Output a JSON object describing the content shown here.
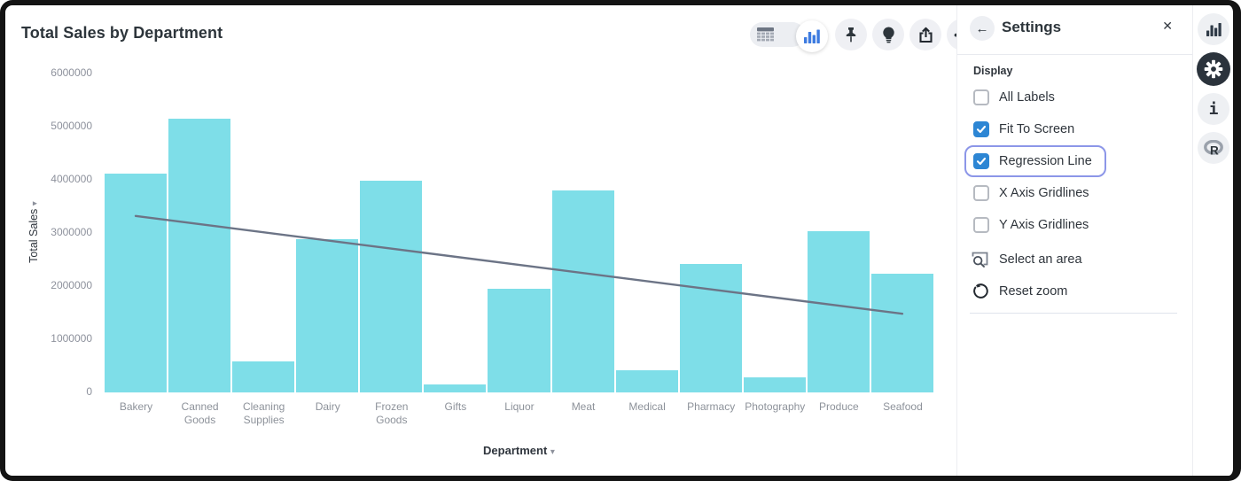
{
  "header": {
    "title": "Total Sales by Department"
  },
  "toolbar": {
    "icons": [
      "table-view-icon",
      "bar-chart-view-icon",
      "pin-icon",
      "lightbulb-icon",
      "share-icon",
      "ellipsis-icon"
    ],
    "ellipsis_glyph": "•••"
  },
  "chart_data": {
    "type": "bar",
    "title": "Total Sales by Department",
    "xlabel": "Department",
    "ylabel": "Total Sales",
    "categories": [
      "Bakery",
      "Canned Goods",
      "Cleaning Supplies",
      "Dairy",
      "Frozen Goods",
      "Gifts",
      "Liquor",
      "Meat",
      "Medical",
      "Pharmacy",
      "Photography",
      "Produce",
      "Seafood"
    ],
    "values": [
      4120000,
      5150000,
      580000,
      2890000,
      3980000,
      150000,
      1950000,
      3800000,
      420000,
      2420000,
      280000,
      3040000,
      2230000
    ],
    "ylim": [
      0,
      6000000
    ],
    "yticks": [
      0,
      1000000,
      2000000,
      3000000,
      4000000,
      5000000,
      6000000
    ],
    "grid": false,
    "regression_line": {
      "start": 3320000,
      "end": 1480000,
      "color": "#6c7486"
    },
    "bar_color": "#7edee8"
  },
  "axis_dropdown_glyph": "▾",
  "settings_panel": {
    "back_glyph": "←",
    "title": "Settings",
    "close_glyph": "✕",
    "section": "Display",
    "checkboxes": [
      {
        "label": "All Labels",
        "checked": false,
        "highlighted": false
      },
      {
        "label": "Fit To Screen",
        "checked": true,
        "highlighted": false
      },
      {
        "label": "Regression Line",
        "checked": true,
        "highlighted": true
      },
      {
        "label": "X Axis Gridlines",
        "checked": false,
        "highlighted": false
      },
      {
        "label": "Y Axis Gridlines",
        "checked": false,
        "highlighted": false
      }
    ],
    "actions": [
      {
        "icon": "select-area-icon",
        "label": "Select an area"
      },
      {
        "icon": "reset-zoom-icon",
        "label": "Reset zoom"
      }
    ]
  },
  "right_rail": {
    "icons": [
      "bar-chart-icon",
      "gear-icon",
      "info-icon",
      "r-logo-icon"
    ],
    "active": "gear-icon",
    "info_glyph": "i"
  },
  "colors": {
    "accent_blue": "#2d86d4",
    "toolbar_icon_blue": "#3d7be0",
    "highlight_outline": "#8c96e8",
    "bar_fill": "#7edee8",
    "regression": "#6c7486",
    "text_dark": "#2d353b",
    "text_muted": "#8d929a",
    "active_circle_dark": "#2b333c"
  }
}
